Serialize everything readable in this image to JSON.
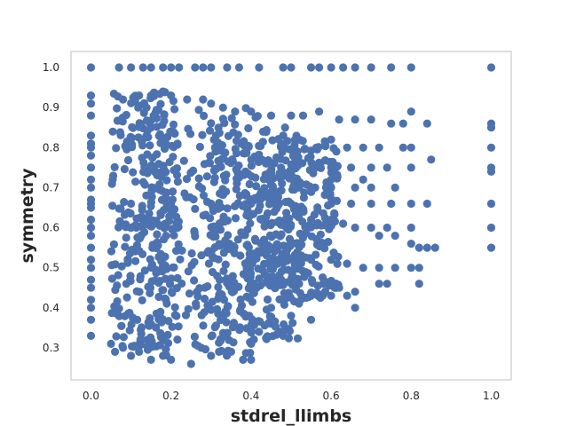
{
  "chart_data": {
    "type": "scatter",
    "title": "",
    "xlabel": "stdrel_llimbs",
    "ylabel": "symmetry",
    "xlim": [
      -0.05,
      1.05
    ],
    "ylim": [
      0.22,
      1.04
    ],
    "xticks": [
      0.0,
      0.2,
      0.4,
      0.6,
      0.8,
      1.0
    ],
    "xtick_labels": [
      "0.0",
      "0.2",
      "0.4",
      "0.6",
      "0.8",
      "1.0"
    ],
    "yticks": [
      0.3,
      0.4,
      0.5,
      0.6,
      0.7,
      0.8,
      0.9,
      1.0
    ],
    "ytick_labels": [
      "0.3",
      "0.4",
      "0.5",
      "0.6",
      "0.7",
      "0.8",
      "0.9",
      "1.0"
    ],
    "grid": false,
    "legend": "none",
    "series": [
      {
        "color": "#4c72b0",
        "points": [
          [
            0.0,
            1.0
          ],
          [
            0.07,
            1.0
          ],
          [
            0.1,
            1.0
          ],
          [
            0.13,
            1.0
          ],
          [
            0.15,
            1.0
          ],
          [
            0.18,
            1.0
          ],
          [
            0.2,
            1.0
          ],
          [
            0.22,
            1.0
          ],
          [
            0.26,
            1.0
          ],
          [
            0.28,
            1.0
          ],
          [
            0.3,
            1.0
          ],
          [
            0.34,
            1.0
          ],
          [
            0.37,
            1.0
          ],
          [
            0.42,
            1.0
          ],
          [
            0.48,
            1.0
          ],
          [
            0.5,
            1.0
          ],
          [
            0.55,
            1.0
          ],
          [
            0.57,
            1.0
          ],
          [
            0.6,
            1.0
          ],
          [
            0.63,
            1.0
          ],
          [
            0.66,
            1.0
          ],
          [
            0.7,
            1.0
          ],
          [
            0.75,
            1.0
          ],
          [
            0.8,
            1.0
          ],
          [
            1.0,
            1.0
          ],
          [
            0.0,
            0.93
          ],
          [
            0.0,
            0.91
          ],
          [
            0.0,
            0.88
          ],
          [
            0.0,
            0.83
          ],
          [
            0.0,
            0.81
          ],
          [
            0.0,
            0.8
          ],
          [
            0.0,
            0.78
          ],
          [
            0.0,
            0.75
          ],
          [
            0.0,
            0.72
          ],
          [
            0.0,
            0.7
          ],
          [
            0.0,
            0.67
          ],
          [
            0.0,
            0.65
          ],
          [
            0.0,
            0.62
          ],
          [
            0.0,
            0.6
          ],
          [
            0.0,
            0.58
          ],
          [
            0.0,
            0.55
          ],
          [
            0.0,
            0.52
          ],
          [
            0.0,
            0.5
          ],
          [
            0.0,
            0.47
          ],
          [
            0.0,
            0.45
          ],
          [
            0.0,
            0.42
          ],
          [
            0.0,
            0.4
          ],
          [
            0.0,
            0.37
          ],
          [
            0.0,
            0.33
          ],
          [
            0.08,
            0.92
          ],
          [
            0.12,
            0.93
          ],
          [
            0.15,
            0.93
          ],
          [
            0.18,
            0.94
          ],
          [
            0.2,
            0.93
          ],
          [
            0.24,
            0.92
          ],
          [
            0.28,
            0.92
          ],
          [
            0.3,
            0.91
          ],
          [
            0.33,
            0.9
          ],
          [
            0.36,
            0.89
          ],
          [
            0.4,
            0.89
          ],
          [
            0.45,
            0.88
          ],
          [
            0.5,
            0.88
          ],
          [
            0.53,
            0.88
          ],
          [
            0.57,
            0.89
          ],
          [
            0.62,
            0.87
          ],
          [
            0.66,
            0.87
          ],
          [
            0.7,
            0.87
          ],
          [
            0.75,
            0.86
          ],
          [
            0.78,
            0.86
          ],
          [
            0.8,
            0.89
          ],
          [
            0.84,
            0.86
          ],
          [
            1.0,
            0.86
          ],
          [
            1.0,
            0.85
          ],
          [
            0.6,
            0.82
          ],
          [
            0.64,
            0.8
          ],
          [
            0.68,
            0.8
          ],
          [
            0.72,
            0.8
          ],
          [
            0.78,
            0.8
          ],
          [
            0.8,
            0.8
          ],
          [
            0.85,
            0.77
          ],
          [
            1.0,
            0.8
          ],
          [
            0.56,
            0.75
          ],
          [
            0.6,
            0.75
          ],
          [
            0.65,
            0.75
          ],
          [
            0.7,
            0.75
          ],
          [
            0.74,
            0.75
          ],
          [
            0.8,
            0.75
          ],
          [
            0.6,
            0.72
          ],
          [
            0.68,
            0.72
          ],
          [
            1.0,
            0.75
          ],
          [
            1.0,
            0.74
          ],
          [
            0.52,
            0.7
          ],
          [
            0.56,
            0.7
          ],
          [
            0.6,
            0.7
          ],
          [
            0.66,
            0.7
          ],
          [
            0.7,
            0.7
          ],
          [
            0.76,
            0.7
          ],
          [
            0.0,
            0.66
          ],
          [
            0.1,
            0.66
          ],
          [
            0.2,
            0.66
          ],
          [
            0.3,
            0.66
          ],
          [
            0.4,
            0.66
          ],
          [
            0.5,
            0.66
          ],
          [
            0.6,
            0.66
          ],
          [
            0.65,
            0.66
          ],
          [
            0.7,
            0.66
          ],
          [
            0.75,
            0.66
          ],
          [
            0.8,
            0.66
          ],
          [
            0.84,
            0.66
          ],
          [
            1.0,
            0.66
          ],
          [
            0.55,
            0.62
          ],
          [
            0.6,
            0.62
          ],
          [
            0.63,
            0.61
          ],
          [
            0.66,
            0.6
          ],
          [
            0.7,
            0.6
          ],
          [
            0.74,
            0.6
          ],
          [
            0.8,
            0.6
          ],
          [
            0.72,
            0.58
          ],
          [
            0.76,
            0.58
          ],
          [
            0.8,
            0.56
          ],
          [
            0.82,
            0.55
          ],
          [
            0.84,
            0.55
          ],
          [
            0.86,
            0.55
          ],
          [
            1.0,
            0.6
          ],
          [
            1.0,
            0.55
          ],
          [
            0.55,
            0.52
          ],
          [
            0.6,
            0.52
          ],
          [
            0.64,
            0.51
          ],
          [
            0.68,
            0.5
          ],
          [
            0.72,
            0.5
          ],
          [
            0.76,
            0.5
          ],
          [
            0.8,
            0.5
          ],
          [
            0.82,
            0.5
          ],
          [
            0.52,
            0.46
          ],
          [
            0.58,
            0.46
          ],
          [
            0.62,
            0.45
          ],
          [
            0.66,
            0.44
          ],
          [
            0.72,
            0.46
          ],
          [
            0.74,
            0.46
          ],
          [
            0.82,
            0.46
          ],
          [
            0.55,
            0.43
          ],
          [
            0.6,
            0.43
          ],
          [
            0.64,
            0.43
          ],
          [
            0.66,
            0.4
          ],
          [
            0.45,
            0.4
          ],
          [
            0.5,
            0.38
          ],
          [
            0.55,
            0.37
          ],
          [
            0.42,
            0.34
          ],
          [
            0.48,
            0.33
          ],
          [
            0.4,
            0.31
          ],
          [
            0.05,
            0.31
          ],
          [
            0.06,
            0.29
          ],
          [
            0.08,
            0.3
          ],
          [
            0.1,
            0.28
          ],
          [
            0.12,
            0.29
          ],
          [
            0.15,
            0.27
          ],
          [
            0.18,
            0.28
          ],
          [
            0.2,
            0.27
          ],
          [
            0.25,
            0.26
          ],
          [
            0.3,
            0.28
          ],
          [
            0.32,
            0.29
          ],
          [
            0.35,
            0.29
          ],
          [
            0.38,
            0.27
          ],
          [
            0.4,
            0.27
          ]
        ],
        "dense_regions": [
          {
            "x_range": [
              0.05,
              0.22
            ],
            "y_range": [
              0.3,
              0.94
            ]
          },
          {
            "x_range": [
              0.12,
              0.42
            ],
            "y_range": [
              0.28,
              0.9
            ]
          },
          {
            "x_range": [
              0.3,
              0.52
            ],
            "y_range": [
              0.32,
              0.86
            ]
          },
          {
            "x_range": [
              0.42,
              0.62
            ],
            "y_range": [
              0.42,
              0.82
            ]
          }
        ]
      }
    ]
  }
}
